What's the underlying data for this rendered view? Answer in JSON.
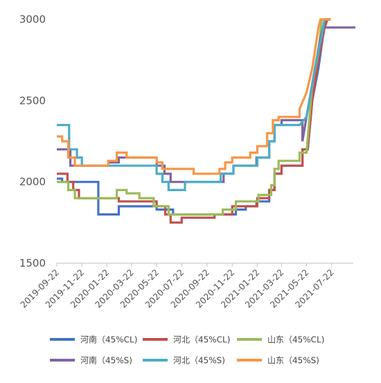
{
  "chart_data": {
    "type": "line",
    "ylim": [
      1500,
      3000
    ],
    "yticks": [
      1500,
      2000,
      2500,
      3000
    ],
    "x_range": [
      "2019-09-22",
      "2021-09-18"
    ],
    "xticks": [
      "2019-09-22",
      "2019-11-22",
      "2020-01-22",
      "2020-03-22",
      "2020-05-22",
      "2020-07-22",
      "2020-09-22",
      "2020-11-22",
      "2021-01-22",
      "2021-03-22",
      "2021-05-22",
      "2021-07-22"
    ],
    "grid": false,
    "legend_position": "bottom",
    "series": [
      {
        "name": "河南（45%CL)",
        "color": "#4472C4",
        "points": [
          [
            "2019-09-22",
            2020
          ],
          [
            "2019-10-05",
            2020
          ],
          [
            "2019-10-05",
            2000
          ],
          [
            "2020-01-01",
            2000
          ],
          [
            "2020-01-01",
            1800
          ],
          [
            "2020-02-20",
            1800
          ],
          [
            "2020-02-20",
            1850
          ],
          [
            "2020-05-22",
            1850
          ],
          [
            "2020-05-22",
            1830
          ],
          [
            "2020-07-01",
            1830
          ],
          [
            "2020-07-01",
            1800
          ],
          [
            "2020-12-01",
            1800
          ],
          [
            "2020-12-01",
            1830
          ],
          [
            "2020-12-25",
            1830
          ],
          [
            "2020-12-25",
            1850
          ],
          [
            "2021-01-20",
            1850
          ],
          [
            "2021-01-20",
            1880
          ],
          [
            "2021-02-20",
            1880
          ],
          [
            "2021-02-20",
            1950
          ],
          [
            "2021-03-05",
            1950
          ],
          [
            "2021-03-05",
            2050
          ],
          [
            "2021-03-22",
            2050
          ],
          [
            "2021-03-22",
            2100
          ],
          [
            "2021-05-12",
            2100
          ],
          [
            "2021-05-12",
            2200
          ],
          [
            "2021-05-25",
            2200
          ],
          [
            "2021-06-05",
            2500
          ],
          [
            "2021-06-20",
            2700
          ],
          [
            "2021-07-01",
            2900
          ],
          [
            "2021-07-08",
            3000
          ],
          [
            "2021-07-20",
            3000
          ]
        ]
      },
      {
        "name": "河北（45%CL)",
        "color": "#C0504D",
        "points": [
          [
            "2019-09-22",
            2050
          ],
          [
            "2019-10-18",
            2050
          ],
          [
            "2019-10-18",
            2000
          ],
          [
            "2019-11-01",
            2000
          ],
          [
            "2019-11-01",
            1950
          ],
          [
            "2019-11-15",
            1950
          ],
          [
            "2019-11-15",
            1900
          ],
          [
            "2020-02-20",
            1900
          ],
          [
            "2020-02-20",
            1880
          ],
          [
            "2020-05-22",
            1880
          ],
          [
            "2020-05-22",
            1850
          ],
          [
            "2020-06-12",
            1850
          ],
          [
            "2020-06-12",
            1800
          ],
          [
            "2020-06-25",
            1800
          ],
          [
            "2020-06-25",
            1750
          ],
          [
            "2020-07-22",
            1750
          ],
          [
            "2020-07-22",
            1780
          ],
          [
            "2020-10-10",
            1780
          ],
          [
            "2020-10-10",
            1800
          ],
          [
            "2020-11-22",
            1800
          ],
          [
            "2020-11-22",
            1850
          ],
          [
            "2021-01-22",
            1850
          ],
          [
            "2021-01-22",
            1900
          ],
          [
            "2021-02-20",
            1900
          ],
          [
            "2021-02-20",
            1950
          ],
          [
            "2021-03-05",
            1950
          ],
          [
            "2021-03-05",
            2050
          ],
          [
            "2021-03-22",
            2050
          ],
          [
            "2021-03-22",
            2100
          ],
          [
            "2021-05-12",
            2100
          ],
          [
            "2021-05-12",
            2200
          ],
          [
            "2021-05-25",
            2200
          ],
          [
            "2021-06-05",
            2500
          ],
          [
            "2021-06-20",
            2750
          ],
          [
            "2021-07-05",
            2950
          ],
          [
            "2021-07-12",
            3000
          ],
          [
            "2021-07-20",
            3000
          ]
        ]
      },
      {
        "name": "山东（45%CL)",
        "color": "#9BBB59",
        "points": [
          [
            "2019-09-22",
            2000
          ],
          [
            "2019-10-20",
            2000
          ],
          [
            "2019-10-20",
            1950
          ],
          [
            "2019-11-05",
            1950
          ],
          [
            "2019-11-05",
            1900
          ],
          [
            "2020-02-15",
            1900
          ],
          [
            "2020-02-15",
            1950
          ],
          [
            "2020-03-10",
            1950
          ],
          [
            "2020-03-10",
            1930
          ],
          [
            "2020-04-10",
            1930
          ],
          [
            "2020-04-10",
            1900
          ],
          [
            "2020-05-15",
            1900
          ],
          [
            "2020-05-15",
            1850
          ],
          [
            "2020-06-20",
            1850
          ],
          [
            "2020-06-20",
            1800
          ],
          [
            "2020-10-30",
            1800
          ],
          [
            "2020-10-30",
            1830
          ],
          [
            "2020-12-01",
            1830
          ],
          [
            "2020-12-01",
            1880
          ],
          [
            "2021-01-25",
            1880
          ],
          [
            "2021-01-25",
            1920
          ],
          [
            "2021-02-25",
            1920
          ],
          [
            "2021-02-25",
            1980
          ],
          [
            "2021-03-05",
            1980
          ],
          [
            "2021-03-05",
            2080
          ],
          [
            "2021-03-15",
            2080
          ],
          [
            "2021-03-15",
            2130
          ],
          [
            "2021-05-05",
            2130
          ],
          [
            "2021-05-05",
            2180
          ],
          [
            "2021-05-22",
            2180
          ],
          [
            "2021-06-05",
            2600
          ],
          [
            "2021-06-20",
            2800
          ],
          [
            "2021-06-28",
            3000
          ],
          [
            "2021-07-20",
            3000
          ]
        ]
      },
      {
        "name": "河南（45%S)",
        "color": "#8064A2",
        "points": [
          [
            "2019-09-22",
            2200
          ],
          [
            "2019-10-25",
            2200
          ],
          [
            "2019-10-25",
            2100
          ],
          [
            "2020-01-25",
            2100
          ],
          [
            "2020-01-25",
            2120
          ],
          [
            "2020-02-20",
            2120
          ],
          [
            "2020-02-20",
            2150
          ],
          [
            "2020-05-22",
            2150
          ],
          [
            "2020-05-22",
            2100
          ],
          [
            "2020-06-10",
            2100
          ],
          [
            "2020-06-10",
            2050
          ],
          [
            "2020-06-25",
            2050
          ],
          [
            "2020-06-25",
            2000
          ],
          [
            "2020-11-01",
            2000
          ],
          [
            "2020-11-01",
            2050
          ],
          [
            "2020-11-25",
            2050
          ],
          [
            "2020-11-25",
            2100
          ],
          [
            "2021-01-20",
            2100
          ],
          [
            "2021-01-20",
            2150
          ],
          [
            "2021-02-20",
            2150
          ],
          [
            "2021-02-20",
            2250
          ],
          [
            "2021-03-05",
            2250
          ],
          [
            "2021-03-05",
            2350
          ],
          [
            "2021-03-22",
            2350
          ],
          [
            "2021-03-22",
            2380
          ],
          [
            "2021-05-12",
            2380
          ],
          [
            "2021-05-12",
            2250
          ],
          [
            "2021-05-22",
            2400
          ],
          [
            "2021-06-08",
            2650
          ],
          [
            "2021-06-22",
            2850
          ],
          [
            "2021-07-01",
            2950
          ],
          [
            "2021-09-18",
            2950
          ]
        ]
      },
      {
        "name": "河北（45%S)",
        "color": "#4BACC6",
        "points": [
          [
            "2019-09-22",
            2350
          ],
          [
            "2019-10-22",
            2350
          ],
          [
            "2019-10-22",
            2200
          ],
          [
            "2019-11-10",
            2200
          ],
          [
            "2019-11-10",
            2150
          ],
          [
            "2019-11-22",
            2150
          ],
          [
            "2019-11-22",
            2100
          ],
          [
            "2020-05-22",
            2100
          ],
          [
            "2020-05-22",
            2050
          ],
          [
            "2020-06-05",
            2050
          ],
          [
            "2020-06-05",
            2000
          ],
          [
            "2020-06-20",
            2000
          ],
          [
            "2020-06-20",
            1950
          ],
          [
            "2020-07-30",
            1950
          ],
          [
            "2020-07-30",
            2000
          ],
          [
            "2020-10-25",
            2000
          ],
          [
            "2020-10-25",
            2050
          ],
          [
            "2020-11-25",
            2050
          ],
          [
            "2020-11-25",
            2100
          ],
          [
            "2021-01-22",
            2100
          ],
          [
            "2021-01-22",
            2150
          ],
          [
            "2021-02-20",
            2150
          ],
          [
            "2021-02-20",
            2250
          ],
          [
            "2021-03-05",
            2250
          ],
          [
            "2021-03-05",
            2350
          ],
          [
            "2021-03-22",
            2350
          ],
          [
            "2021-05-05",
            2350
          ],
          [
            "2021-05-22",
            2400
          ],
          [
            "2021-06-05",
            2600
          ],
          [
            "2021-06-15",
            2750
          ],
          [
            "2021-06-28",
            2900
          ],
          [
            "2021-07-05",
            3000
          ],
          [
            "2021-07-20",
            3000
          ]
        ]
      },
      {
        "name": "山东（45%S)",
        "color": "#F79646",
        "points": [
          [
            "2019-09-22",
            2280
          ],
          [
            "2019-10-05",
            2280
          ],
          [
            "2019-10-05",
            2250
          ],
          [
            "2019-10-20",
            2250
          ],
          [
            "2019-10-20",
            2150
          ],
          [
            "2019-11-05",
            2150
          ],
          [
            "2019-11-05",
            2100
          ],
          [
            "2020-01-25",
            2100
          ],
          [
            "2020-01-25",
            2130
          ],
          [
            "2020-02-15",
            2130
          ],
          [
            "2020-02-15",
            2180
          ],
          [
            "2020-03-10",
            2180
          ],
          [
            "2020-03-10",
            2150
          ],
          [
            "2020-05-22",
            2150
          ],
          [
            "2020-05-22",
            2120
          ],
          [
            "2020-06-05",
            2120
          ],
          [
            "2020-06-05",
            2080
          ],
          [
            "2020-08-20",
            2080
          ],
          [
            "2020-08-20",
            2050
          ],
          [
            "2020-10-22",
            2050
          ],
          [
            "2020-10-22",
            2080
          ],
          [
            "2020-11-05",
            2080
          ],
          [
            "2020-11-05",
            2120
          ],
          [
            "2020-11-22",
            2120
          ],
          [
            "2020-11-22",
            2150
          ],
          [
            "2021-01-05",
            2150
          ],
          [
            "2021-01-05",
            2180
          ],
          [
            "2021-01-22",
            2180
          ],
          [
            "2021-01-22",
            2220
          ],
          [
            "2021-02-15",
            2220
          ],
          [
            "2021-02-15",
            2300
          ],
          [
            "2021-03-01",
            2300
          ],
          [
            "2021-03-01",
            2380
          ],
          [
            "2021-03-15",
            2380
          ],
          [
            "2021-03-15",
            2400
          ],
          [
            "2021-05-05",
            2400
          ],
          [
            "2021-05-05",
            2450
          ],
          [
            "2021-05-22",
            2550
          ],
          [
            "2021-06-05",
            2700
          ],
          [
            "2021-06-20",
            2950
          ],
          [
            "2021-06-25",
            3000
          ],
          [
            "2021-07-20",
            3000
          ]
        ]
      }
    ],
    "legend_rows": [
      [
        0,
        1,
        2
      ],
      [
        3,
        4,
        5
      ]
    ]
  }
}
